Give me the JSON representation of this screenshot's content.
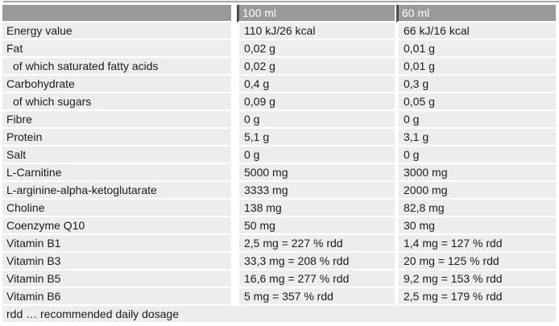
{
  "table": {
    "headers": {
      "label_column": "",
      "col_100ml": "100 ml",
      "col_60ml": "60 ml"
    },
    "rows": [
      {
        "label": "Energy value",
        "v100": "110 kJ/26 kcal",
        "v60": "66 kJ/16 kcal",
        "indent": false
      },
      {
        "label": "Fat",
        "v100": "0,02 g",
        "v60": "0,01 g",
        "indent": false
      },
      {
        "label": "of which saturated fatty acids",
        "v100": "0,02 g",
        "v60": "0,01 g",
        "indent": true
      },
      {
        "label": "Carbohydrate",
        "v100": "0,4 g",
        "v60": "0,3 g",
        "indent": false
      },
      {
        "label": "of which sugars",
        "v100": "0,09 g",
        "v60": "0,05 g",
        "indent": true
      },
      {
        "label": "Fibre",
        "v100": "0 g",
        "v60": "0 g",
        "indent": false
      },
      {
        "label": "Protein",
        "v100": "5,1 g",
        "v60": "3,1 g",
        "indent": false
      },
      {
        "label": "Salt",
        "v100": "0 g",
        "v60": "0 g",
        "indent": false
      },
      {
        "label": "L-Carnitine",
        "v100": "5000 mg",
        "v60": "3000 mg",
        "indent": false
      },
      {
        "label": "L-arginine-alpha-ketoglutarate",
        "v100": "3333 mg",
        "v60": "2000 mg",
        "indent": false
      },
      {
        "label": "Choline",
        "v100": "138 mg",
        "v60": "82,8 mg",
        "indent": false
      },
      {
        "label": "Coenzyme Q10",
        "v100": "50 mg",
        "v60": "30 mg",
        "indent": false
      },
      {
        "label": "Vitamin B1",
        "v100": "2,5 mg = 227 % rdd",
        "v60": "1,4 mg = 127 % rdd",
        "indent": false
      },
      {
        "label": "Vitamin B3",
        "v100": "33,3 mg = 208 % rdd",
        "v60": "20 mg = 125 % rdd",
        "indent": false
      },
      {
        "label": "Vitamin B5",
        "v100": "16,6 mg = 277 % rdd",
        "v60": "9,2 mg = 153 % rdd",
        "indent": false
      },
      {
        "label": "Vitamin B6",
        "v100": "5 mg = 357 % rdd",
        "v60": "2,5 mg = 179 % rdd",
        "indent": false
      }
    ],
    "footnote": "rdd … recommended daily dosage"
  },
  "colors": {
    "header_bg": "#9a9a9a",
    "header_text": "#ffffff",
    "row_bg": "#ededed",
    "divider_dark": "#4d4d4d",
    "text": "#1b1b1b",
    "page_bg": "#ffffff"
  }
}
